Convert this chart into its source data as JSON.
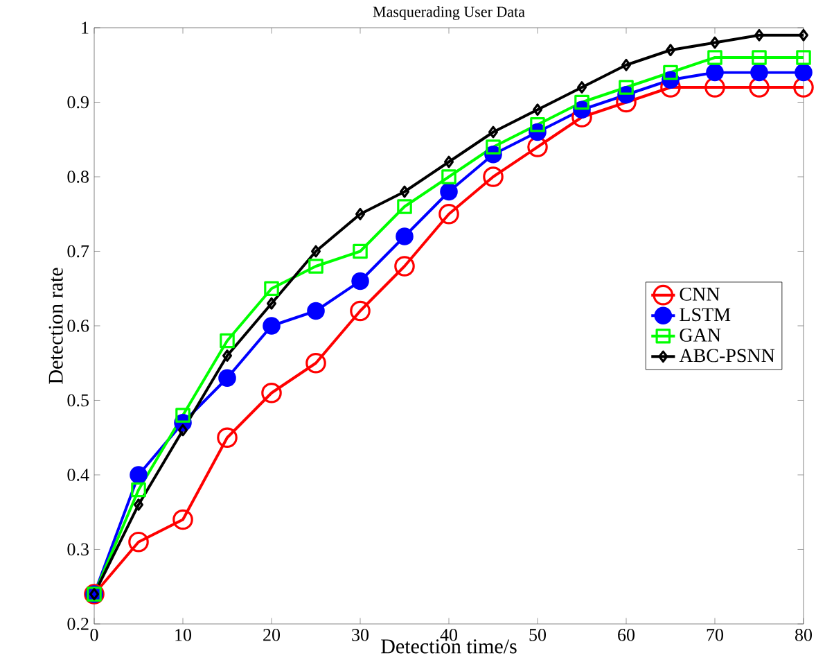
{
  "chart_data": {
    "type": "line",
    "title": "Masquerading User Data",
    "xlabel": "Detection time/s",
    "ylabel": "Detection rate",
    "x": [
      0,
      5,
      10,
      15,
      20,
      25,
      30,
      35,
      40,
      45,
      50,
      55,
      60,
      65,
      70,
      75,
      80
    ],
    "series": [
      {
        "name": "CNN",
        "color": "#ff0000",
        "marker": "circle",
        "values": [
          0.24,
          0.31,
          0.34,
          0.45,
          0.51,
          0.55,
          0.62,
          0.68,
          0.75,
          0.8,
          0.84,
          0.88,
          0.9,
          0.92,
          0.92,
          0.92,
          0.92
        ]
      },
      {
        "name": "LSTM",
        "color": "#0000ff",
        "marker": "filled circle",
        "values": [
          0.24,
          0.4,
          0.47,
          0.53,
          0.6,
          0.62,
          0.66,
          0.72,
          0.78,
          0.83,
          0.86,
          0.89,
          0.91,
          0.93,
          0.94,
          0.94,
          0.94
        ]
      },
      {
        "name": "GAN",
        "color": "#00ff00",
        "marker": "square",
        "values": [
          0.24,
          0.38,
          0.48,
          0.58,
          0.65,
          0.68,
          0.7,
          0.76,
          0.8,
          0.84,
          0.87,
          0.9,
          0.92,
          0.94,
          0.96,
          0.96,
          0.96
        ]
      },
      {
        "name": "ABC-PSNN",
        "color": "#000000",
        "marker": "diamond",
        "values": [
          0.24,
          0.36,
          0.46,
          0.56,
          0.63,
          0.7,
          0.75,
          0.78,
          0.82,
          0.86,
          0.89,
          0.92,
          0.95,
          0.97,
          0.98,
          0.99,
          0.99
        ]
      }
    ],
    "xlim": [
      0,
      80
    ],
    "ylim": [
      0.2,
      1
    ],
    "xticks": [
      0,
      10,
      20,
      30,
      40,
      50,
      60,
      70,
      80
    ],
    "yticks": [
      0.2,
      0.3,
      0.4,
      0.5,
      0.6,
      0.7,
      0.8,
      0.9,
      1
    ],
    "grid": false,
    "legend": "right",
    "line_style": "solid"
  }
}
